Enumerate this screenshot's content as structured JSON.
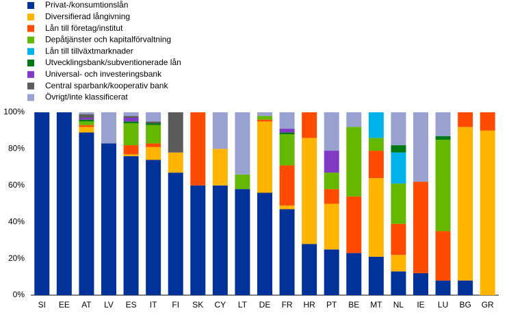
{
  "chart_data": {
    "type": "stacked_bar",
    "categories": [
      "SI",
      "EE",
      "AT",
      "LV",
      "ES",
      "IT",
      "FI",
      "SK",
      "CY",
      "LT",
      "DE",
      "FR",
      "HR",
      "PT",
      "BE",
      "MT",
      "NL",
      "IE",
      "LU",
      "BG",
      "GR"
    ],
    "series": [
      {
        "name": "Privat-/konsumtionslån",
        "color": "#003299",
        "values": [
          100,
          100,
          89,
          83,
          76,
          74,
          67,
          60,
          60,
          58,
          56,
          47,
          28,
          25,
          23,
          21,
          13,
          12,
          8,
          8,
          0
        ]
      },
      {
        "name": "Diversifierad långivning",
        "color": "#ffb400",
        "values": [
          0,
          0,
          3,
          0,
          1,
          7,
          11,
          0,
          20,
          0,
          39,
          2,
          58,
          25,
          0,
          43,
          9,
          0,
          0,
          84,
          90
        ]
      },
      {
        "name": "Lån till företag/institut",
        "color": "#ff4b00",
        "values": [
          0,
          0,
          1,
          0,
          5,
          2,
          0,
          40,
          0,
          0,
          1,
          22,
          14,
          8,
          31,
          15,
          17,
          50,
          27,
          8,
          10
        ]
      },
      {
        "name": "Depåtjänster och kapitalförvaltning",
        "color": "#65b800",
        "values": [
          0,
          0,
          2,
          0,
          12,
          10,
          0,
          0,
          0,
          8,
          2,
          17,
          0,
          9,
          38,
          7,
          22,
          0,
          50,
          0,
          0
        ]
      },
      {
        "name": "Lån till tillväxtmarknader",
        "color": "#00b1ea",
        "values": [
          0,
          0,
          0,
          0,
          0,
          0,
          0,
          0,
          0,
          0,
          0,
          0,
          0,
          0,
          0,
          14,
          17,
          0,
          0,
          0,
          0
        ]
      },
      {
        "name": "Utvecklingsbank/subventionerade lån",
        "color": "#007816",
        "values": [
          0,
          0,
          1,
          0,
          1,
          1,
          0,
          0,
          0,
          0,
          0,
          1,
          0,
          0,
          0,
          0,
          4,
          0,
          2,
          0,
          0
        ]
      },
      {
        "name": "Universal- och investeringsbank",
        "color": "#8139c6",
        "values": [
          0,
          0,
          1,
          0,
          2,
          0,
          0,
          0,
          0,
          0,
          0,
          2,
          0,
          12,
          0,
          0,
          0,
          0,
          0,
          0,
          0
        ]
      },
      {
        "name": "Central sparbank/kooperativ bank",
        "color": "#5c5c5c",
        "values": [
          0,
          0,
          2,
          0,
          1,
          1,
          22,
          0,
          0,
          0,
          0,
          0,
          0,
          0,
          0,
          0,
          0,
          0,
          0,
          0,
          0
        ]
      },
      {
        "name": "Övrigt/inte klassificerat",
        "color": "#98a1d0",
        "values": [
          0,
          0,
          1,
          17,
          2,
          5,
          0,
          0,
          20,
          34,
          2,
          9,
          0,
          21,
          8,
          0,
          18,
          38,
          13,
          0,
          0
        ]
      }
    ],
    "ylim": [
      0,
      100
    ],
    "yticks": [
      {
        "value": 0,
        "label": "0%"
      },
      {
        "value": 20,
        "label": "20%"
      },
      {
        "value": 40,
        "label": "40%"
      },
      {
        "value": 60,
        "label": "60%"
      },
      {
        "value": 80,
        "label": "80%"
      },
      {
        "value": 100,
        "label": "100%"
      }
    ]
  }
}
